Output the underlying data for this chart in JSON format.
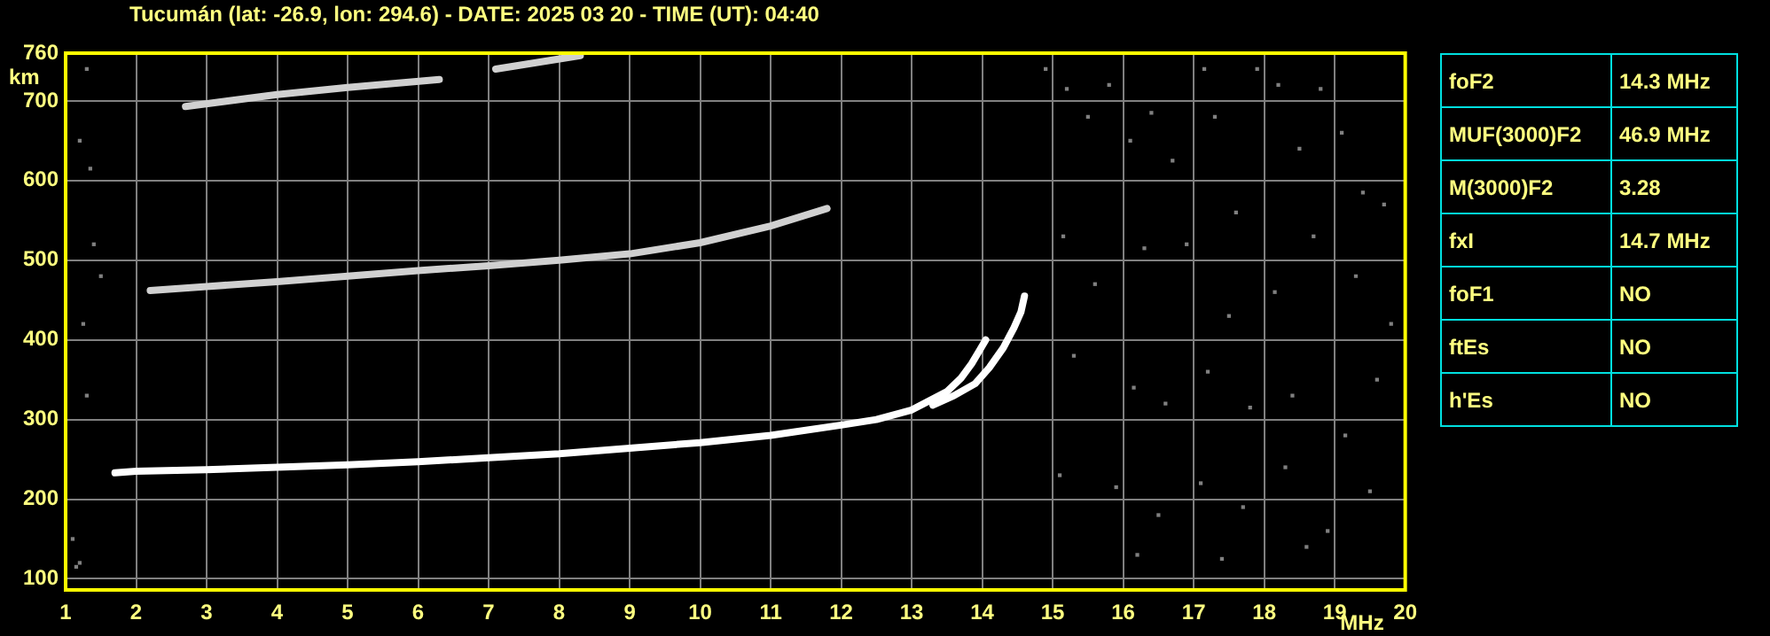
{
  "chart_data": [
    {
      "type": "line",
      "title": "Tucumán (lat: -26.9, lon: 294.6) - DATE: 2025 03 20 - TIME (UT): 04:40",
      "xlabel": "MHz",
      "ylabel": "km",
      "xlim": [
        1,
        20
      ],
      "xticks": [
        1,
        2,
        3,
        4,
        5,
        6,
        7,
        8,
        9,
        10,
        11,
        12,
        13,
        14,
        15,
        16,
        17,
        18,
        19,
        20
      ],
      "ylim": [
        86,
        760
      ],
      "yticks": [
        100,
        200,
        300,
        400,
        500,
        600,
        700,
        760
      ],
      "grid": true,
      "legend": false,
      "marker": "none",
      "line_style": "solid",
      "series": [
        {
          "type": "line",
          "color": "#ffffff",
          "x": [
            1.7,
            2,
            3,
            4,
            5,
            6,
            7,
            8,
            9,
            10,
            11,
            12,
            12.5,
            13,
            13.5,
            13.7,
            13.85,
            13.95,
            14.05
          ],
          "values": [
            233,
            235,
            237,
            240,
            243,
            247,
            252,
            257,
            264,
            271,
            280,
            293,
            300,
            312,
            335,
            352,
            370,
            385,
            400
          ]
        },
        {
          "type": "line",
          "color": "#ffffff",
          "x": [
            13.3,
            13.6,
            13.9,
            14.1,
            14.3,
            14.45,
            14.55,
            14.6
          ],
          "values": [
            318,
            330,
            345,
            365,
            390,
            415,
            435,
            455
          ]
        },
        {
          "type": "line",
          "color": "#d0d0d0",
          "x": [
            2.2,
            3,
            4,
            5,
            6,
            7,
            8,
            9,
            10,
            11,
            11.8
          ],
          "values": [
            462,
            467,
            473,
            480,
            487,
            493,
            500,
            508,
            522,
            543,
            565
          ]
        },
        {
          "type": "line",
          "color": "#d0d0d0",
          "x": [
            2.7,
            4,
            5,
            6.3,
            6.7,
            7.1,
            8.3
          ],
          "values": [
            693,
            708,
            717,
            727,
            null,
            740,
            757
          ]
        },
        {
          "type": "scatter",
          "color": "#808080",
          "marker": "square",
          "x": [
            1.3,
            1.2,
            1.35,
            1.4,
            1.25,
            1.1,
            1.3,
            1.2,
            1.5,
            1.15,
            14.9,
            15.2,
            15.5,
            15.8,
            16.1,
            16.4,
            16.7,
            17.15,
            17.3,
            17.6,
            17.9,
            18.2,
            18.5,
            18.8,
            19.1,
            19.4,
            19.7,
            15.15,
            15.6,
            16.3,
            16.9,
            17.5,
            18.15,
            18.7,
            19.3,
            19.8,
            15.3,
            16.15,
            16.6,
            17.2,
            17.8,
            18.4,
            19.15,
            19.6,
            15.1,
            15.9,
            16.5,
            17.1,
            17.7,
            18.3,
            18.9,
            19.5,
            16.2,
            17.4,
            18.6
          ],
          "values": [
            740,
            650,
            615,
            520,
            420,
            150,
            330,
            120,
            480,
            115,
            740,
            715,
            680,
            720,
            650,
            685,
            625,
            740,
            680,
            560,
            740,
            720,
            640,
            715,
            660,
            585,
            570,
            530,
            470,
            515,
            520,
            430,
            460,
            530,
            480,
            420,
            380,
            340,
            320,
            360,
            315,
            330,
            280,
            350,
            230,
            215,
            180,
            220,
            190,
            240,
            160,
            210,
            130,
            125,
            140
          ]
        }
      ]
    },
    {
      "type": "other",
      "annotations": [
        "foF2",
        "14.3 MHz",
        "MUF(3000)F2",
        "46.9 MHz",
        "M(3000)F2",
        "3.28",
        "fxI",
        "14.7 MHz",
        "foF1",
        "NO",
        "ftEs",
        "NO",
        "h'Es",
        "NO"
      ]
    }
  ]
}
